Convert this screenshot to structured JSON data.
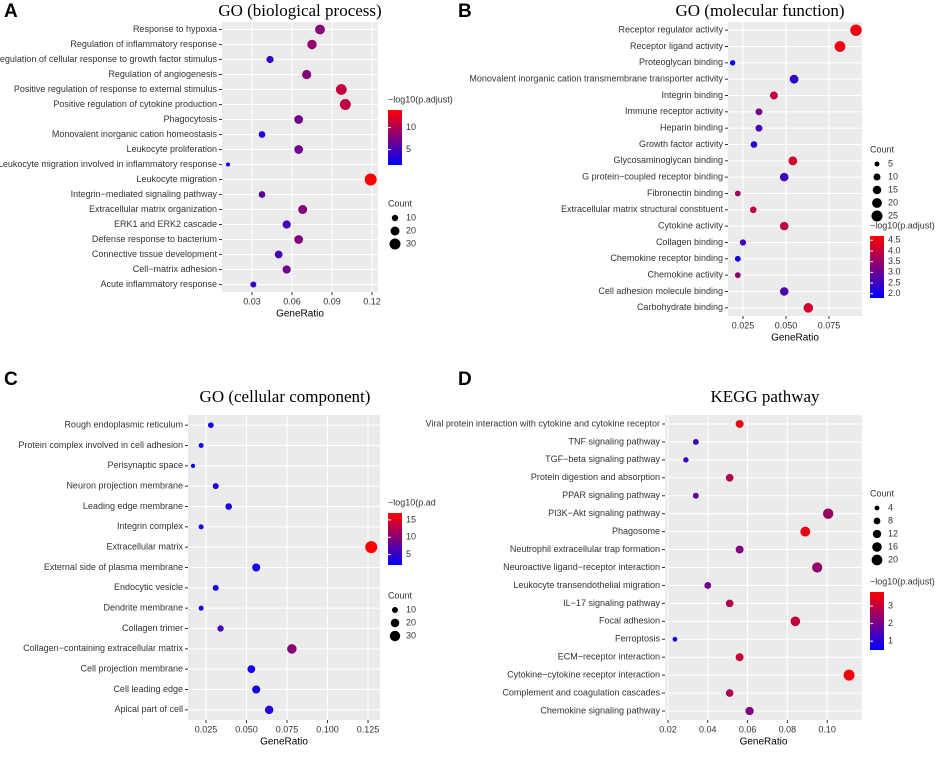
{
  "chart_data": [
    {
      "type": "dot",
      "label": "A",
      "title": "GO (biological process)",
      "xlabel": "GeneRatio",
      "size_title": "Count",
      "color_title": "−log10(p.adjust)",
      "categories": [
        "Response to hypoxia",
        "Regulation of inflammatory response",
        "Regulation of cellular response to growth factor stimulus",
        "Regulation of angiogenesis",
        "Positive regulation of response to external stimulus",
        "Positive regulation of cytokine production",
        "Phagocytosis",
        "Monovalent inorganic cation homeostasis",
        "Leukocyte proliferation",
        "Leukocyte migration involved in inflammatory response",
        "Leukocyte migration",
        "Integrin−mediated signaling pathway",
        "Extracellular matrix organization",
        "ERK1 and ERK2 cascade",
        "Defense response to bacterium",
        "Connective tissue development",
        "Cell−matrix adhesion",
        "Acute inflammatory response"
      ],
      "values": [
        0.081,
        0.075,
        0.0435,
        0.071,
        0.097,
        0.1,
        0.065,
        0.0375,
        0.065,
        0.012,
        0.119,
        0.0375,
        0.068,
        0.056,
        0.065,
        0.05,
        0.056,
        0.031
      ],
      "sizes": [
        24,
        22,
        13,
        21,
        29,
        30,
        19,
        11,
        19,
        4,
        36,
        11,
        20,
        17,
        19,
        15,
        17,
        9
      ],
      "color_values": [
        8,
        9,
        4,
        8,
        11,
        11,
        7,
        3,
        7,
        2,
        14,
        6,
        8,
        5,
        8,
        5,
        7,
        4
      ],
      "xlim": [
        0.0075,
        0.1245
      ],
      "xticks": [
        0.03,
        0.06,
        0.09,
        0.12
      ],
      "size_ticks": [
        10,
        20,
        30
      ],
      "color_lim": [
        1.5,
        14
      ],
      "color_ticks": [
        5,
        10
      ],
      "color_low": "#0000ff",
      "color_high": "#ff0000",
      "grid": true
    },
    {
      "type": "dot",
      "label": "B",
      "title": "GO (molecular function)",
      "xlabel": "GeneRatio",
      "size_title": "Count",
      "color_title": "−log10(p.adjust)",
      "categories": [
        "Receptor regulator activity",
        "Receptor ligand activity",
        "Proteoglycan binding",
        "Monovalent inorganic cation transmembrane transporter activity",
        "Integrin binding",
        "Immune receptor activity",
        "Heparin binding",
        "Growth factor activity",
        "Glycosaminoglycan binding",
        "G protein−coupled receptor binding",
        "Fibronectin binding",
        "Extracellular matrix structural constituent",
        "Cytokine activity",
        "Collagen binding",
        "Chemokine receptor binding",
        "Chemokine activity",
        "Cell adhesion molecule binding",
        "Carbohydrate binding"
      ],
      "values": [
        0.0907,
        0.0814,
        0.019,
        0.0547,
        0.043,
        0.0343,
        0.0343,
        0.0314,
        0.054,
        0.049,
        0.022,
        0.031,
        0.049,
        0.025,
        0.022,
        0.022,
        0.049,
        0.063
      ],
      "sizes": [
        27,
        24,
        6,
        16,
        13,
        10,
        10,
        9,
        16,
        15,
        7,
        9,
        15,
        8,
        7,
        7,
        15,
        19
      ],
      "color_values": [
        4.5,
        4.5,
        1.9,
        2.4,
        4.0,
        3.2,
        2.6,
        2.3,
        4.2,
        2.5,
        3.6,
        4.0,
        4.0,
        2.5,
        2.0,
        3.4,
        2.7,
        4.2
      ],
      "xlim": [
        0.0163,
        0.0942
      ],
      "xticks": [
        0.025,
        {
          "value": 0.05,
          "label": "0.050"
        },
        0.075
      ],
      "size_ticks": [
        5,
        10,
        15,
        20,
        25
      ],
      "color_lim": [
        1.8,
        4.7
      ],
      "color_ticks": [
        {
          "value": 2,
          "label": "2.0"
        },
        2.5,
        {
          "value": 3,
          "label": "3.0"
        },
        3.5,
        {
          "value": 4,
          "label": "4.0"
        },
        4.5
      ],
      "color_low": "#0000ff",
      "color_high": "#ff0000",
      "grid": true
    },
    {
      "type": "dot",
      "label": "C",
      "title": "GO (cellular component)",
      "xlabel": "GeneRatio",
      "size_title": "Count",
      "color_title": "−log10(p.ad",
      "categories": [
        "Rough endoplasmic reticulum",
        "Protein complex involved in cell adhesion",
        "Perisynaptic space",
        "Neuron projection membrane",
        "Leading edge membrane",
        "Integrin complex",
        "Extracellular matrix",
        "External side of plasma membrane",
        "Endocytic vesicle",
        "Dendrite membrane",
        "Collagen trimer",
        "Collagen−containing extracellular matrix",
        "Cell projection membrane",
        "Cell leading edge",
        "Apical part of cell"
      ],
      "values": [
        0.028,
        0.022,
        0.017,
        0.031,
        0.039,
        0.022,
        0.127,
        0.056,
        0.031,
        0.022,
        0.034,
        0.078,
        0.053,
        0.056,
        0.064
      ],
      "sizes": [
        9,
        7,
        5,
        10,
        12,
        7,
        40,
        18,
        10,
        7,
        11,
        25,
        17,
        18,
        20
      ],
      "color_values": [
        3,
        3,
        2,
        4,
        3,
        3,
        17,
        3,
        3,
        3,
        6,
        10,
        3,
        3,
        4
      ],
      "xlim": [
        0.0139,
        0.1324
      ],
      "xticks": [
        0.025,
        {
          "value": 0.05,
          "label": "0.050"
        },
        0.075,
        {
          "value": 0.1,
          "label": "0.100"
        },
        0.125
      ],
      "size_ticks": [
        10,
        20,
        30
      ],
      "color_lim": [
        2,
        17
      ],
      "color_ticks": [
        5,
        10,
        15
      ],
      "color_low": "#0000ff",
      "color_high": "#ff0000",
      "grid": true
    },
    {
      "type": "dot",
      "label": "D",
      "title": "KEGG pathway",
      "xlabel": "GeneRatio",
      "size_title": "Count",
      "color_title": "−log10(p.adjust)",
      "categories": [
        "Viral protein interaction with cytokine and cytokine receptor",
        "TNF signaling pathway",
        "TGF−beta signaling pathway",
        "Protein digestion and absorption",
        "PPAR signaling pathway",
        "PI3K−Akt signaling pathway",
        "Phagosome",
        "Neutrophil extracellular trap formation",
        "Neuroactive ligand−receptor interaction",
        "Leukocyte transendothelial migration",
        "IL−17 signaling pathway",
        "Focal adhesion",
        "Ferroptosis",
        "ECM−receptor interaction",
        "Cytokine−cytokine receptor interaction",
        "Complement and coagulation cascades",
        "Chemokine signaling pathway"
      ],
      "values": [
        0.056,
        0.034,
        0.029,
        0.051,
        0.034,
        0.1005,
        0.089,
        0.056,
        0.095,
        0.04,
        0.051,
        0.084,
        0.0235,
        0.056,
        0.111,
        0.051,
        0.061
      ],
      "sizes": [
        11,
        6,
        5,
        10,
        6,
        19,
        17,
        11,
        18,
        8,
        10,
        16,
        4,
        11,
        21,
        10,
        12
      ],
      "color_values": [
        3.5,
        1.3,
        1.2,
        2.8,
        1.7,
        2.5,
        3.5,
        2.2,
        2.4,
        1.9,
        2.8,
        3.0,
        0.8,
        3.1,
        3.7,
        2.7,
        2.2
      ],
      "xlim": [
        0.0185,
        0.1175
      ],
      "xticks": [
        0.02,
        0.04,
        0.06,
        0.08,
        {
          "value": 0.1,
          "label": "0.10"
        }
      ],
      "size_ticks": [
        4,
        8,
        12,
        16,
        20
      ],
      "color_lim": [
        0.5,
        3.8
      ],
      "color_ticks": [
        1,
        2,
        3
      ],
      "color_low": "#0000ff",
      "color_high": "#ff0000",
      "grid": true
    }
  ]
}
